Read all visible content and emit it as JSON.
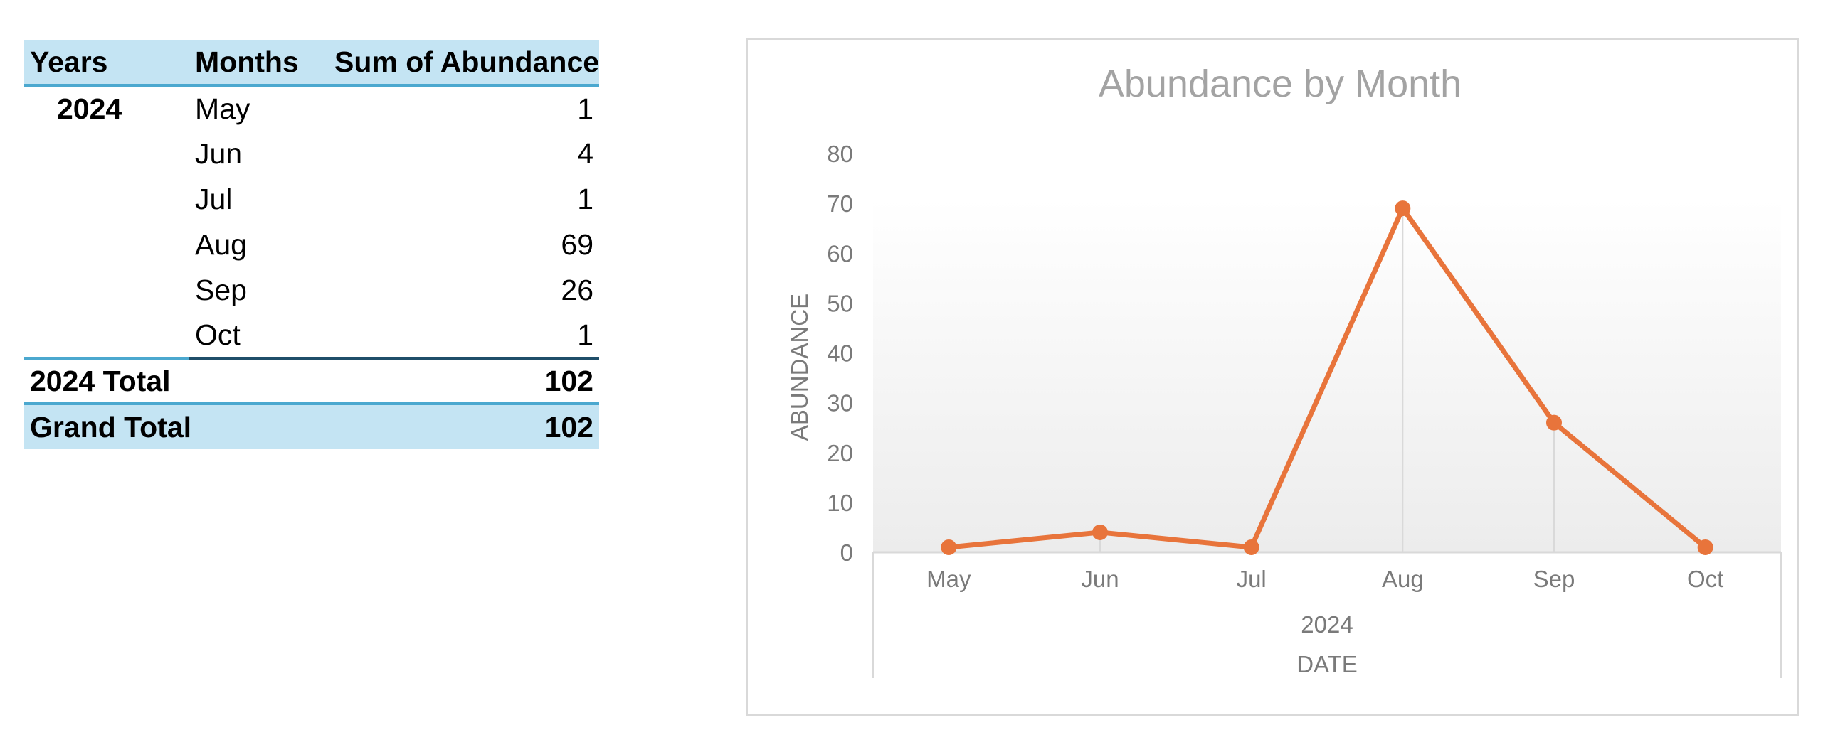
{
  "pivot_table": {
    "headers": [
      "Years",
      "Months",
      "Sum of Abundance"
    ],
    "year": "2024",
    "rows": [
      {
        "month": "May",
        "value": "1"
      },
      {
        "month": "Jun",
        "value": "4"
      },
      {
        "month": "Jul",
        "value": "1"
      },
      {
        "month": "Aug",
        "value": "69"
      },
      {
        "month": "Sep",
        "value": "26"
      },
      {
        "month": "Oct",
        "value": "1"
      }
    ],
    "subtotal_label": "2024 Total",
    "subtotal_value": "102",
    "grand_total_label": "Grand Total",
    "grand_total_value": "102"
  },
  "chart_data": {
    "type": "line",
    "title": "Abundance by Month",
    "ylabel": "ABUNDANCE",
    "xlabel": "DATE",
    "x_group": "2024",
    "categories": [
      "May",
      "Jun",
      "Jul",
      "Aug",
      "Sep",
      "Oct"
    ],
    "series": [
      {
        "values": [
          1,
          4,
          1,
          69,
          26,
          1
        ]
      }
    ],
    "ylim": [
      0,
      80
    ],
    "yticks": [
      0,
      10,
      20,
      30,
      40,
      50,
      60,
      70,
      80
    ],
    "grid": false,
    "legend": "none",
    "line_color": "#e8743b"
  }
}
